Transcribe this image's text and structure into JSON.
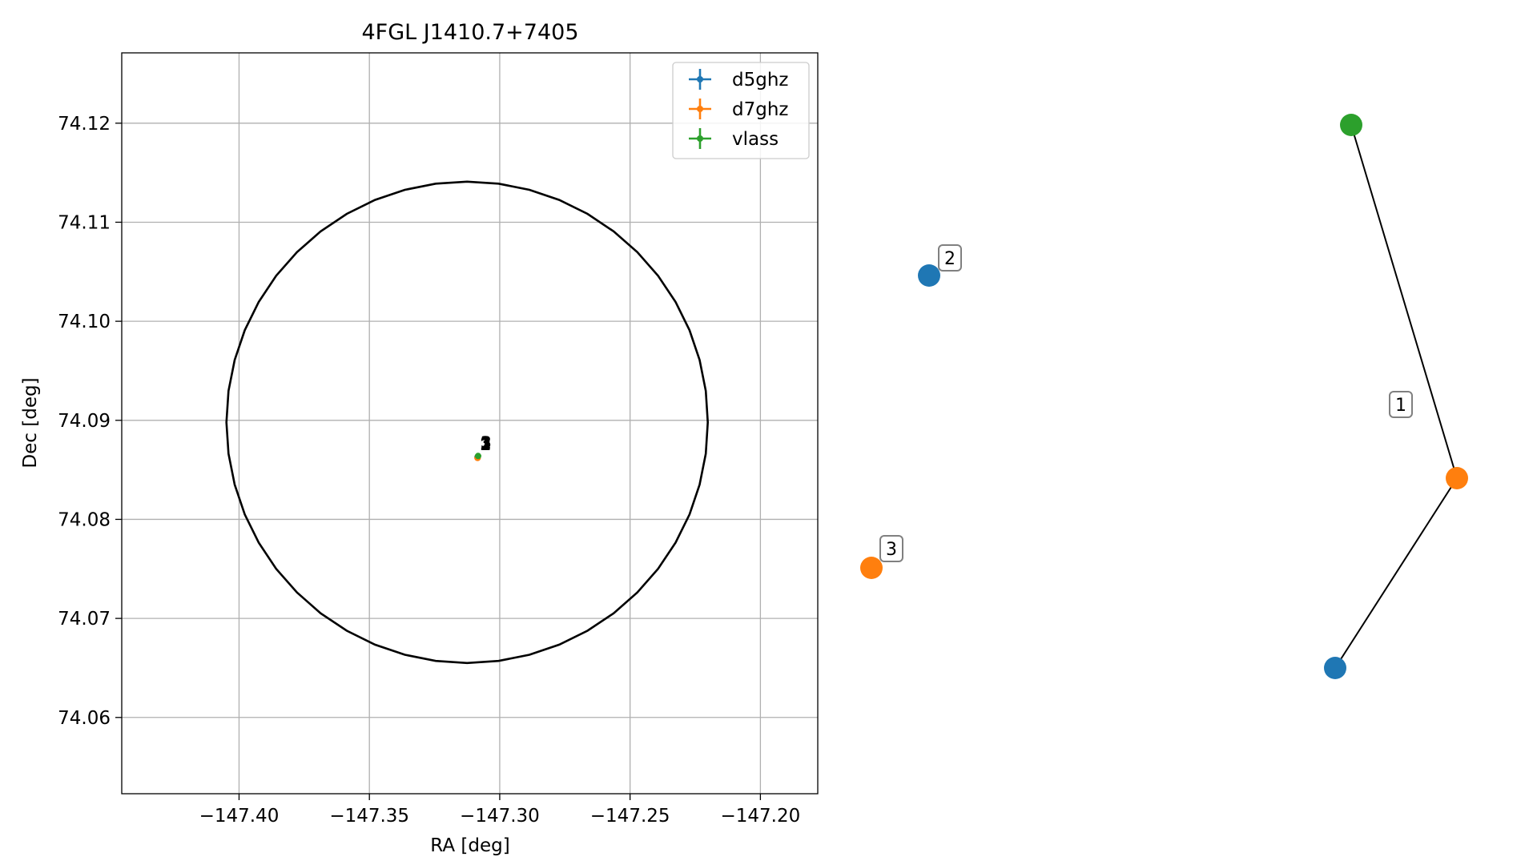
{
  "chart_data": [
    {
      "type": "scatter",
      "title": "4FGL J1410.7+7405",
      "xlabel": "RA [deg]",
      "ylabel": "Dec [deg]",
      "xlim": [
        -147.445,
        -147.178
      ],
      "ylim": [
        74.0523,
        74.1271
      ],
      "xticks": [
        -147.4,
        -147.35,
        -147.3,
        -147.25,
        -147.2
      ],
      "xtick_labels": [
        "−147.40",
        "−147.35",
        "−147.30",
        "−147.25",
        "−147.20"
      ],
      "yticks": [
        74.06,
        74.07,
        74.08,
        74.09,
        74.1,
        74.11,
        74.12
      ],
      "ytick_labels": [
        "74.06",
        "74.07",
        "74.08",
        "74.09",
        "74.10",
        "74.11",
        "74.12"
      ],
      "grid": true,
      "legend_position": "top-right",
      "series": [
        {
          "name": "d5ghz",
          "color": "#1f77b4",
          "points": [
            {
              "x": -147.3085,
              "y": 74.0863,
              "label": "1"
            }
          ]
        },
        {
          "name": "d7ghz",
          "color": "#ff7f0e",
          "points": [
            {
              "x": -147.3085,
              "y": 74.0862,
              "label": "2"
            }
          ]
        },
        {
          "name": "vlass",
          "color": "#2ca02c",
          "points": [
            {
              "x": -147.3083,
              "y": 74.0864,
              "label": "3"
            }
          ]
        }
      ],
      "circle": {
        "center_x": -147.3125,
        "center_y": 74.0898,
        "radius_y": 0.0243,
        "color": "#000000"
      }
    },
    {
      "type": "network",
      "nodes": [
        {
          "id": "green-top",
          "color": "#2ca02c"
        },
        {
          "id": "blue-left",
          "color": "#1f77b4"
        },
        {
          "id": "orange-left",
          "color": "#ff7f0e"
        },
        {
          "id": "orange-right",
          "color": "#ff7f0e"
        },
        {
          "id": "blue-bottom",
          "color": "#1f77b4"
        }
      ],
      "edges": [
        {
          "from": "green-top",
          "to": "orange-right"
        },
        {
          "from": "orange-right",
          "to": "blue-bottom"
        }
      ],
      "labels": [
        "2",
        "3",
        "1"
      ]
    }
  ]
}
